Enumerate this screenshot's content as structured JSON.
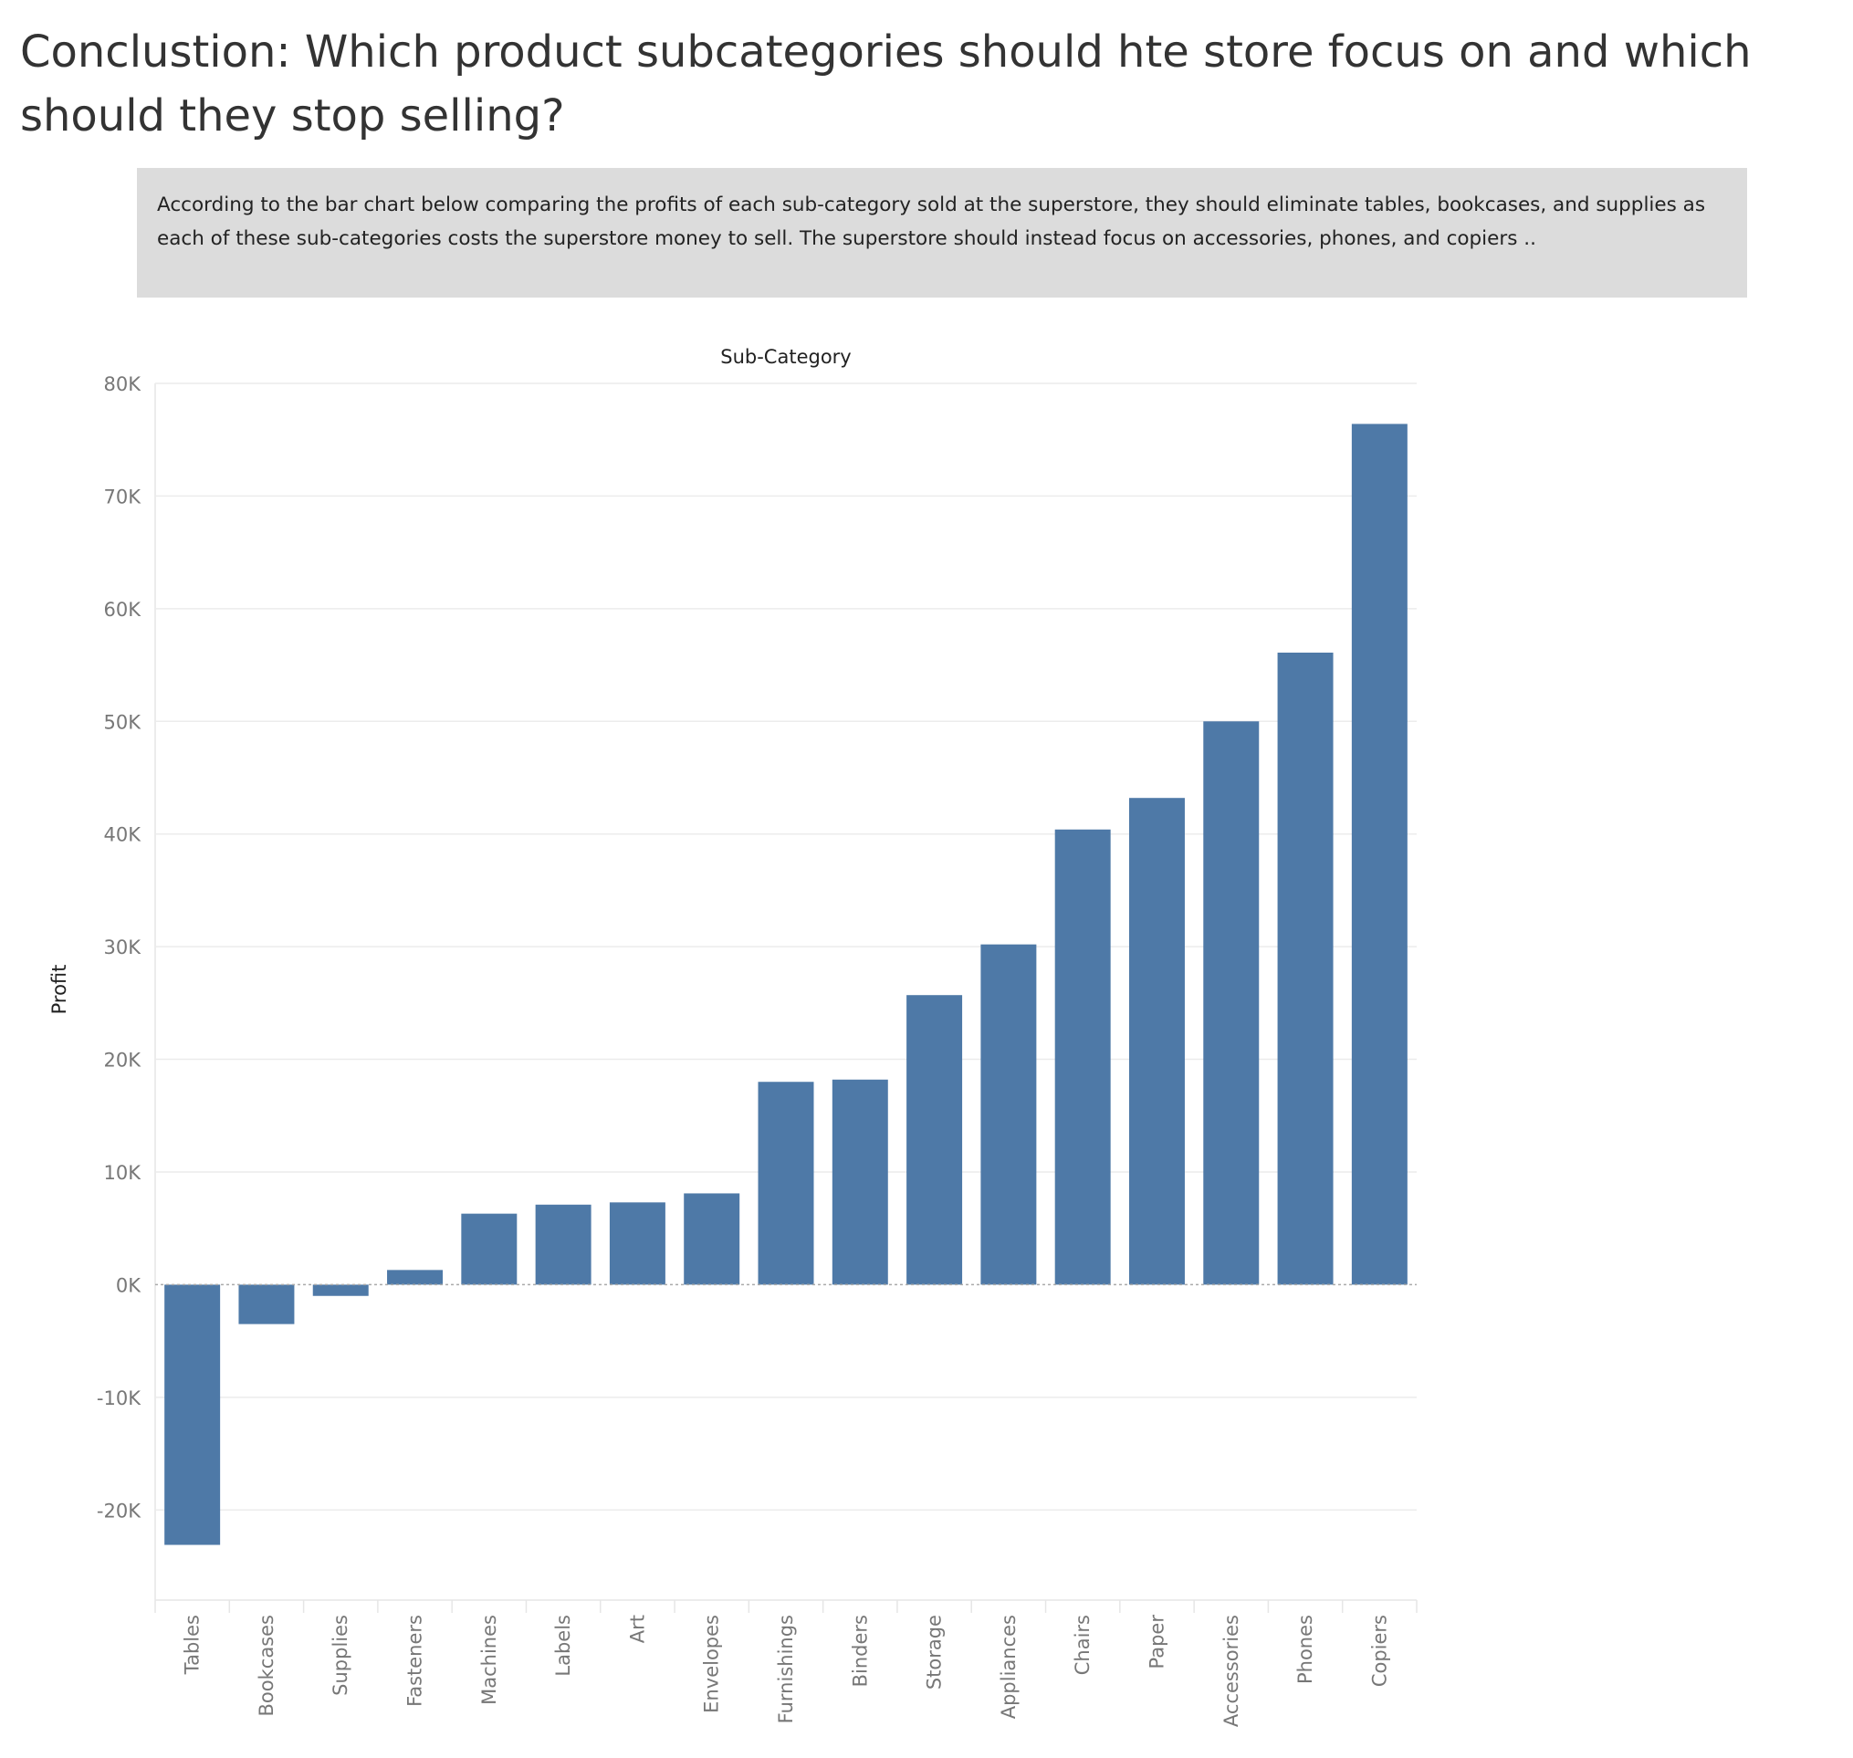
{
  "header": {
    "title": "Conclustion: Which product subcategories should hte store focus on and which should they stop selling?"
  },
  "summary": {
    "text": "According to the bar chart below comparing the profits of each sub-category sold at the superstore, they should eliminate tables, bookcases, and supplies as each of these sub-categories costs the superstore money to sell. The superstore should instead focus on accessories, phones, and copiers .."
  },
  "chart_data": {
    "type": "bar",
    "title": "",
    "xlabel": "Sub-Category",
    "ylabel": "Profit",
    "categories": [
      "Tables",
      "Bookcases",
      "Supplies",
      "Fasteners",
      "Machines",
      "Labels",
      "Art",
      "Envelopes",
      "Furnishings",
      "Binders",
      "Storage",
      "Appliances",
      "Chairs",
      "Paper",
      "Accessories",
      "Phones",
      "Copiers"
    ],
    "values": [
      -23100,
      -3500,
      -1000,
      1300,
      6300,
      7100,
      7300,
      8100,
      18000,
      18200,
      25700,
      30200,
      40400,
      43200,
      50000,
      56100,
      76400
    ],
    "ylim": [
      -28000,
      80000
    ],
    "yticks": [
      -20000,
      -10000,
      0,
      10000,
      20000,
      30000,
      40000,
      50000,
      60000,
      70000,
      80000
    ],
    "ytick_labels": [
      "-20K",
      "-10K",
      "0K",
      "10K",
      "20K",
      "30K",
      "40K",
      "50K",
      "60K",
      "70K",
      "80K"
    ],
    "xlabel_position": "top",
    "grid": true,
    "bar_color": "#4e79a7"
  }
}
